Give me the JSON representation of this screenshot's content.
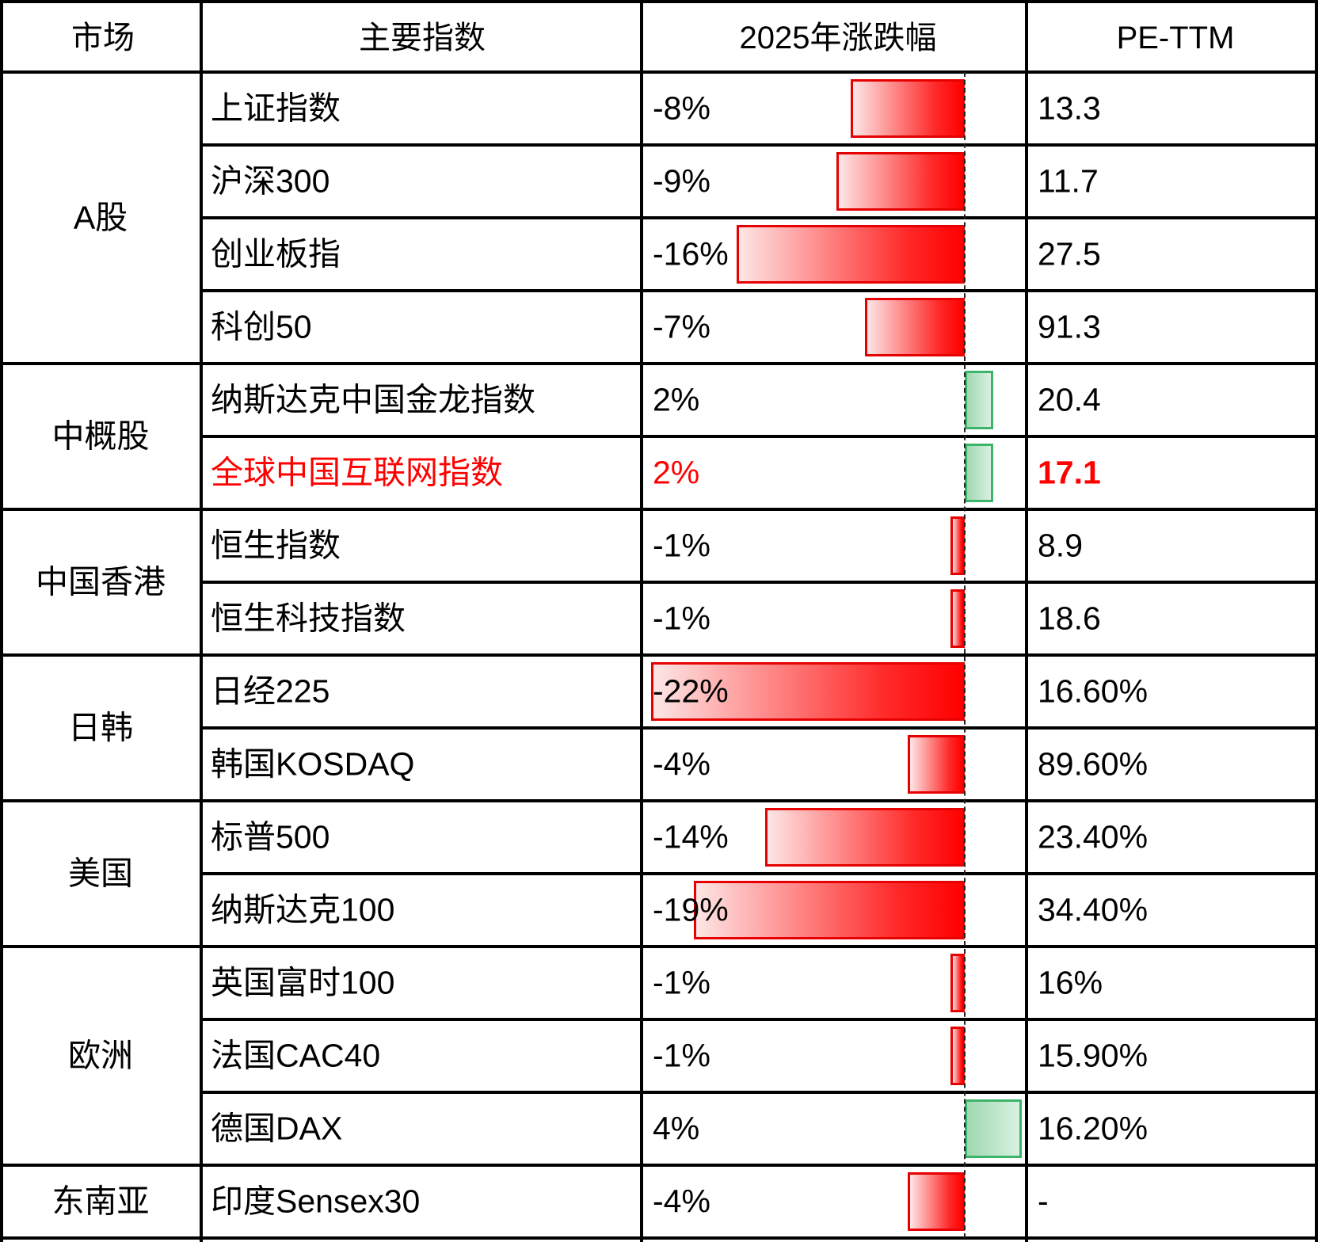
{
  "headers": {
    "market": "市场",
    "index": "主要指数",
    "change": "2025年涨跌幅",
    "pe": "PE-TTM"
  },
  "colors": {
    "negative": "#ff0000",
    "positive": "#3cb56a",
    "highlight": "#ff0000"
  },
  "chart_data": {
    "type": "table",
    "title": "",
    "xlabel": "",
    "ylabel": "",
    "change_range": [
      -22,
      4
    ],
    "markets": [
      {
        "name": "A股",
        "row_count": 4
      },
      {
        "name": "中概股",
        "row_count": 2
      },
      {
        "name": "中国香港",
        "row_count": 2
      },
      {
        "name": "日韩",
        "row_count": 2
      },
      {
        "name": "美国",
        "row_count": 2
      },
      {
        "name": "欧洲",
        "row_count": 3
      },
      {
        "name": "东南亚",
        "row_count": 1
      }
    ],
    "rows": [
      {
        "index": "上证指数",
        "change": -8,
        "change_label": "-8%",
        "pe": "13.3",
        "highlight": false
      },
      {
        "index": "沪深300",
        "change": -9,
        "change_label": "-9%",
        "pe": "11.7",
        "highlight": false
      },
      {
        "index": "创业板指",
        "change": -16,
        "change_label": "-16%",
        "pe": "27.5",
        "highlight": false
      },
      {
        "index": "科创50",
        "change": -7,
        "change_label": "-7%",
        "pe": "91.3",
        "highlight": false
      },
      {
        "index": "纳斯达克中国金龙指数",
        "change": 2,
        "change_label": "2%",
        "pe": "20.4",
        "highlight": false
      },
      {
        "index": "全球中国互联网指数",
        "change": 2,
        "change_label": "2%",
        "pe": "17.1",
        "highlight": true
      },
      {
        "index": "恒生指数",
        "change": -1,
        "change_label": "-1%",
        "pe": "8.9",
        "highlight": false
      },
      {
        "index": "恒生科技指数",
        "change": -1,
        "change_label": "-1%",
        "pe": "18.6",
        "highlight": false
      },
      {
        "index": "日经225",
        "change": -22,
        "change_label": "-22%",
        "pe": "16.60%",
        "highlight": false
      },
      {
        "index": "韩国KOSDAQ",
        "change": -4,
        "change_label": "-4%",
        "pe": "89.60%",
        "highlight": false
      },
      {
        "index": "标普500",
        "change": -14,
        "change_label": "-14%",
        "pe": "23.40%",
        "highlight": false
      },
      {
        "index": "纳斯达克100",
        "change": -19,
        "change_label": "-19%",
        "pe": "34.40%",
        "highlight": false
      },
      {
        "index": "英国富时100",
        "change": -1,
        "change_label": "-1%",
        "pe": "16%",
        "highlight": false
      },
      {
        "index": "法国CAC40",
        "change": -1,
        "change_label": "-1%",
        "pe": "15.90%",
        "highlight": false
      },
      {
        "index": "德国DAX",
        "change": 4,
        "change_label": "4%",
        "pe": "16.20%",
        "highlight": false
      },
      {
        "index": "印度Sensex30",
        "change": -4,
        "change_label": "-4%",
        "pe": "-",
        "highlight": false
      }
    ]
  }
}
